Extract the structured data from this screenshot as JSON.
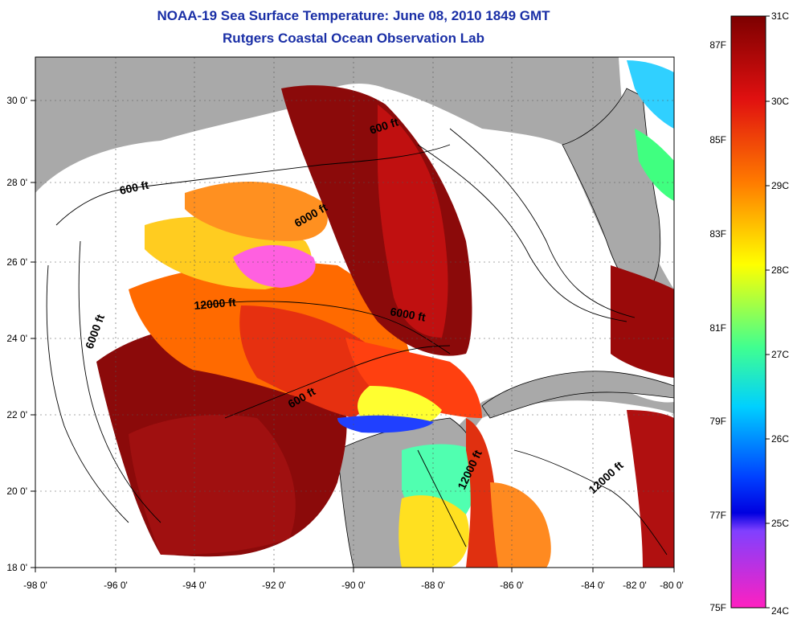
{
  "header": {
    "title": "NOAA-19 Sea Surface Temperature:  June 08, 2010 1849 GMT",
    "subtitle": "Rutgers Coastal Ocean Observation Lab"
  },
  "map": {
    "lon_labels": [
      "-98 0'",
      "-96 0'",
      "-94 0'",
      "-92 0'",
      "-90 0'",
      "-88 0'",
      "-86 0'",
      "-84 0'",
      "-82 0'",
      "-80 0'"
    ],
    "lat_labels": [
      "18 0'",
      "20 0'",
      "22 0'",
      "24 0'",
      "26 0'",
      "28 0'",
      "30 0'"
    ],
    "contour_labels": [
      "600 ft",
      "6000 ft",
      "600 ft",
      "6000 ft",
      "12000 ft",
      "6000 ft",
      "600 ft",
      "12000 ft",
      "12000 ft"
    ]
  },
  "colorbar": {
    "celsius": [
      "31C",
      "30C",
      "29C",
      "28C",
      "27C",
      "26C",
      "25C",
      "24C"
    ],
    "fahrenheit": [
      "87F",
      "85F",
      "83F",
      "81F",
      "79F",
      "77F",
      "75F"
    ]
  },
  "colors": {
    "land": "#a9a9a9",
    "cloud": "#ffffff",
    "title": "#1a2fa6"
  }
}
